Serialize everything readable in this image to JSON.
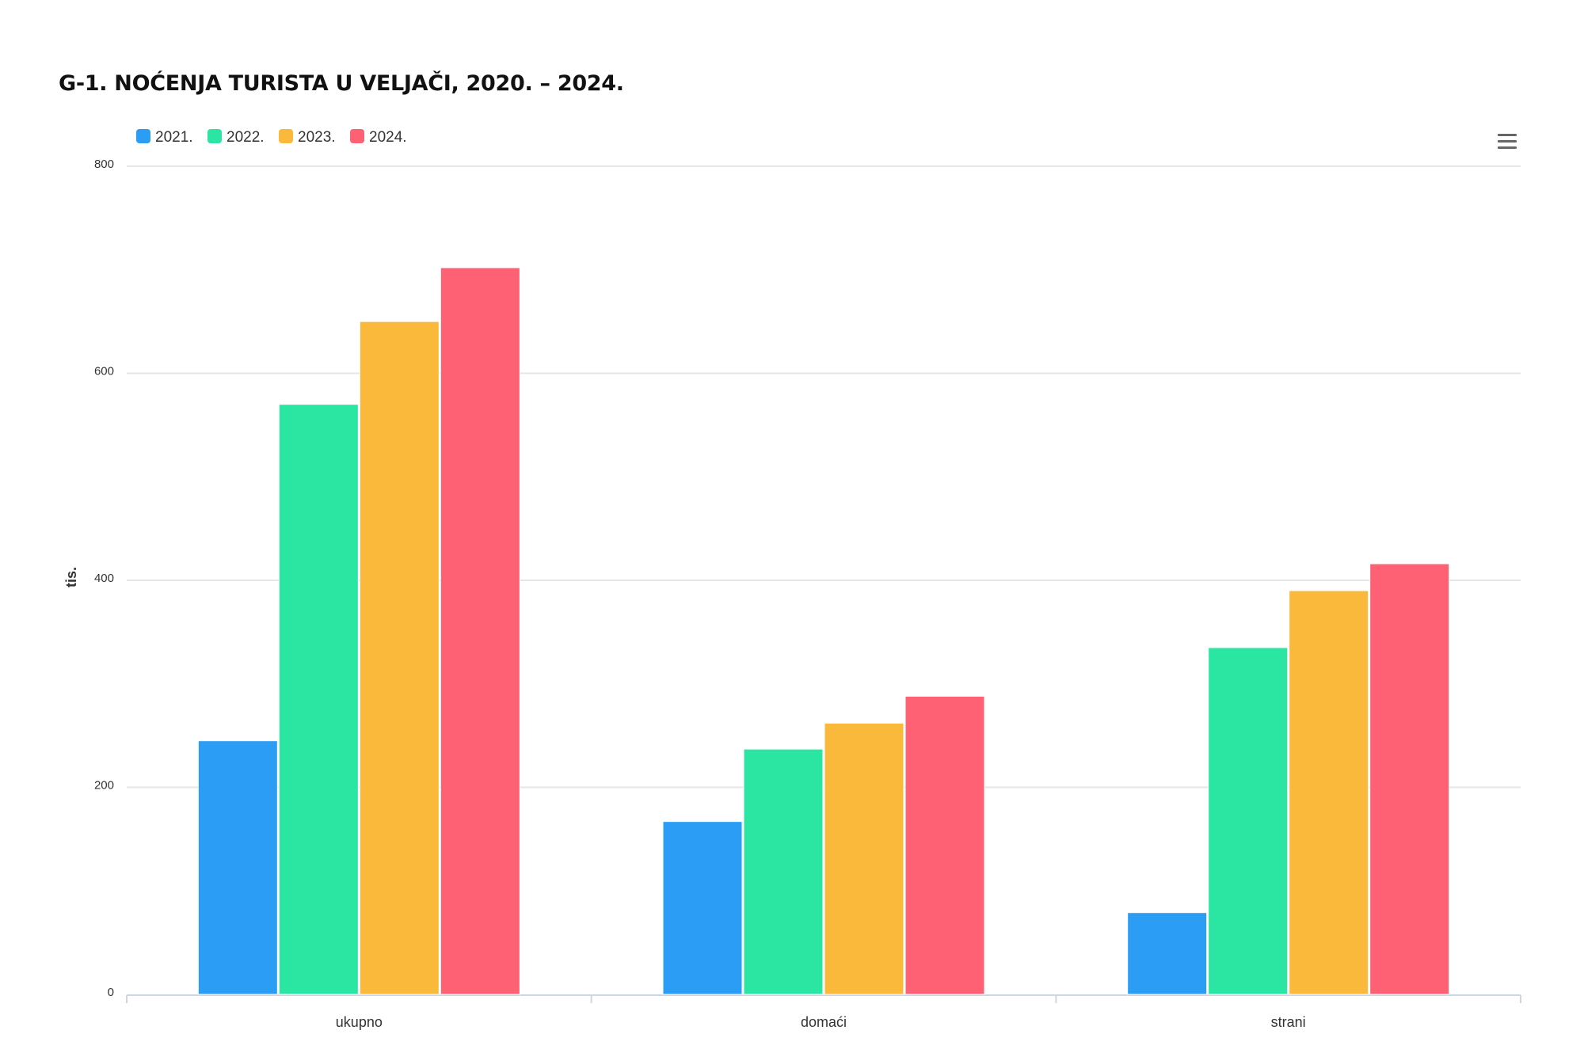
{
  "chart_data": {
    "type": "bar",
    "title": "G-1. NOĆENJA TURISTA U VELJAČI, 2020. – 2024.",
    "xlabel": "",
    "ylabel": "tis.",
    "ylim": [
      0,
      800
    ],
    "yticks": [
      0,
      200,
      400,
      600,
      800
    ],
    "grid": true,
    "legend_position": "top-left",
    "categories": [
      "ukupno",
      "domaći",
      "strani"
    ],
    "series": [
      {
        "name": "2021.",
        "color": "#2b9df4",
        "values": [
          245,
          167,
          79
        ]
      },
      {
        "name": "2022.",
        "color": "#2ae6a2",
        "values": [
          570,
          237,
          335
        ]
      },
      {
        "name": "2023.",
        "color": "#fbb93b",
        "values": [
          650,
          262,
          390
        ]
      },
      {
        "name": "2024.",
        "color": "#fe6074",
        "values": [
          702,
          288,
          416
        ]
      }
    ]
  },
  "toolbar": {
    "menu_icon": "hamburger-menu-icon"
  }
}
